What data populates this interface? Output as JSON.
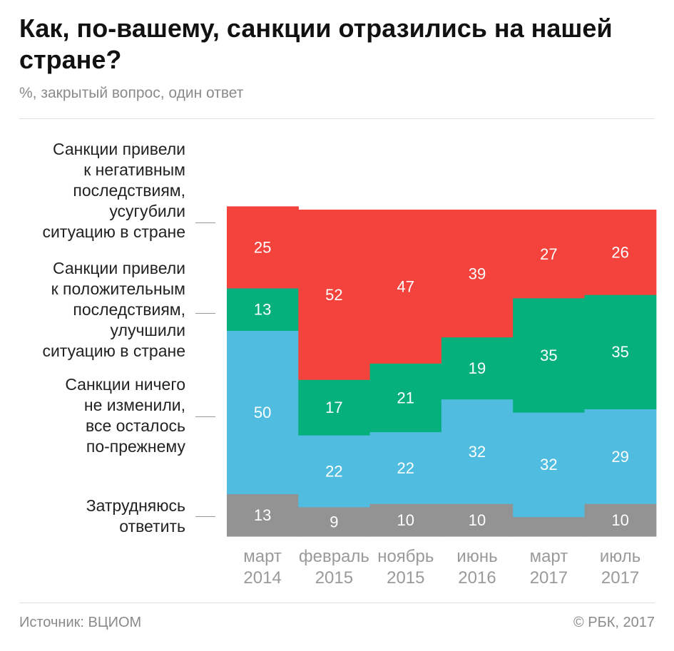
{
  "title": "Как, по-вашему, санкции отразились на нашей стране?",
  "subtitle": "%, закрытый вопрос, один ответ",
  "source": "Источник: ВЦИОМ",
  "copyright": "© РБК, 2017",
  "colors": {
    "negative": "#f4433c",
    "positive": "#05b07c",
    "nochange": "#50bde0",
    "unsure": "#939393"
  },
  "legend": [
    {
      "key": "negative",
      "label": "Санкции привели\nк негативным\nпоследствиям,\nусугубили\nситуацию в стране"
    },
    {
      "key": "positive",
      "label": "Санкции привели\nк положительным\nпоследствиям,\nулучшили\nситуацию в стране"
    },
    {
      "key": "nochange",
      "label": "Санкции ничего\nне изменили,\nвсе осталось\nпо-прежнему"
    },
    {
      "key": "unsure",
      "label": "Затрудняюсь\nответить"
    }
  ],
  "chart_data": {
    "type": "bar",
    "stacked": true,
    "ylim": [
      0,
      100
    ],
    "grid": false,
    "categories": [
      "март\n2014",
      "февраль\n2015",
      "ноябрь\n2015",
      "июнь\n2016",
      "март\n2017",
      "июль\n2017"
    ],
    "series": [
      {
        "key": "unsure",
        "name": "Затрудняюсь ответить",
        "values": [
          13,
          9,
          10,
          10,
          6,
          10
        ],
        "labels": [
          "13",
          "9",
          "10",
          "10",
          "",
          "10"
        ]
      },
      {
        "key": "nochange",
        "name": "Санкции ничего не изменили, все осталось по-прежнему",
        "values": [
          50,
          22,
          22,
          32,
          32,
          29
        ],
        "labels": [
          "50",
          "22",
          "22",
          "32",
          "32",
          "29"
        ]
      },
      {
        "key": "positive",
        "name": "Санкции привели к положительным последствиям, улучшили ситуацию в стране",
        "values": [
          13,
          17,
          21,
          19,
          35,
          35
        ],
        "labels": [
          "13",
          "17",
          "21",
          "19",
          "35",
          "35"
        ]
      },
      {
        "key": "negative",
        "name": "Санкции привели к негативным последствиям, усугубили ситуацию в стране",
        "values": [
          25,
          52,
          47,
          39,
          27,
          26
        ],
        "labels": [
          "25",
          "52",
          "47",
          "39",
          "27",
          "26"
        ]
      }
    ]
  }
}
